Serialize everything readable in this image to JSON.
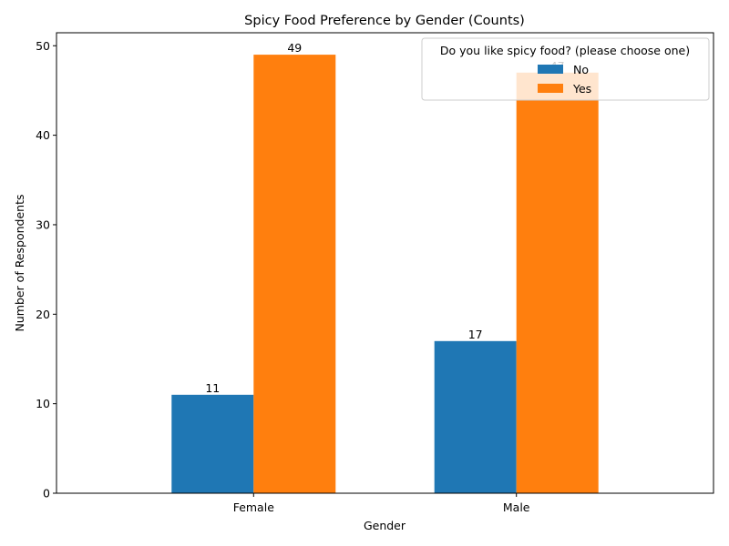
{
  "chart_data": {
    "type": "bar",
    "title": "Spicy Food Preference by Gender (Counts)",
    "xlabel": "Gender",
    "ylabel": "Number of Respondents",
    "categories": [
      "Female",
      "Male"
    ],
    "series": [
      {
        "name": "No",
        "values": [
          11,
          17
        ],
        "color": "#1f77b4"
      },
      {
        "name": "Yes",
        "values": [
          49,
          47
        ],
        "color": "#ff7f0e"
      }
    ],
    "ylim": [
      0,
      51.45
    ],
    "yticks": [
      0,
      10,
      20,
      30,
      40,
      50
    ],
    "grid": false,
    "legend": {
      "title": "Do you like spicy food? (please choose one)",
      "placement": "top-right"
    }
  }
}
